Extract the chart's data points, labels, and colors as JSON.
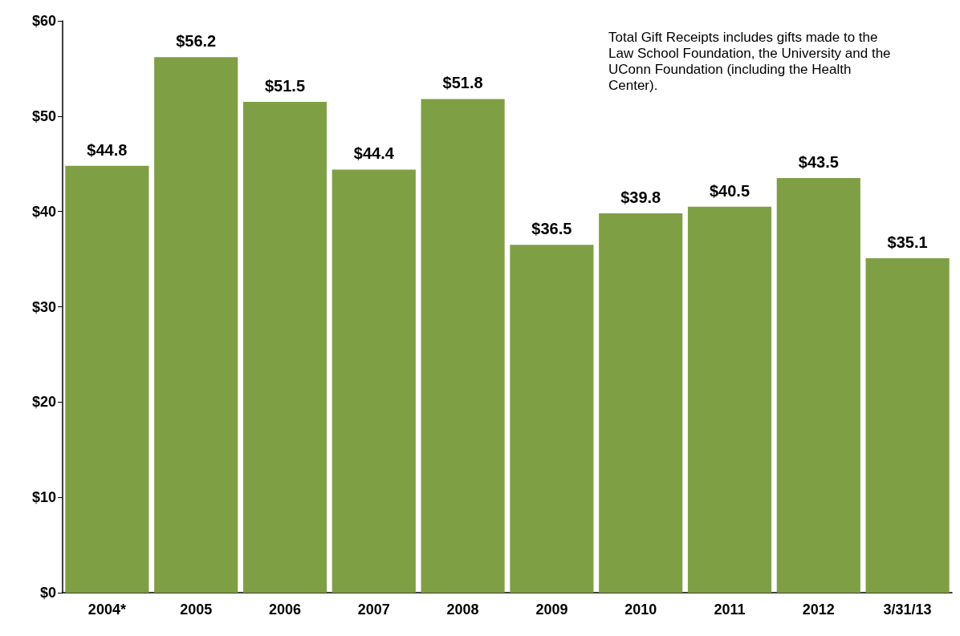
{
  "chart_data": {
    "type": "bar",
    "categories": [
      "2004*",
      "2005",
      "2006",
      "2007",
      "2008",
      "2009",
      "2010",
      "2011",
      "2012",
      "3/31/13"
    ],
    "values": [
      44.8,
      56.2,
      51.5,
      44.4,
      51.8,
      36.5,
      39.8,
      40.5,
      43.5,
      35.1
    ],
    "value_labels": [
      "$44.8",
      "$56.2",
      "$51.5",
      "$44.4",
      "$51.8",
      "$36.5",
      "$39.8",
      "$40.5",
      "$43.5",
      "$35.1"
    ],
    "color": "#7f9f45",
    "ylim": [
      0,
      60
    ],
    "yticks": [
      {
        "value": 0,
        "label": "$0"
      },
      {
        "value": 10,
        "label": "$10"
      },
      {
        "value": 20,
        "label": "$20"
      },
      {
        "value": 30,
        "label": "$30"
      },
      {
        "value": 40,
        "label": "$40"
      },
      {
        "value": 50,
        "label": "$50"
      },
      {
        "value": 60,
        "label": "$60"
      }
    ],
    "annotations": [
      "Total Gift Receipts includes gifts made to the Law School Foundation, the University and the UConn Foundation (including the Health Center)."
    ],
    "grid": false
  }
}
